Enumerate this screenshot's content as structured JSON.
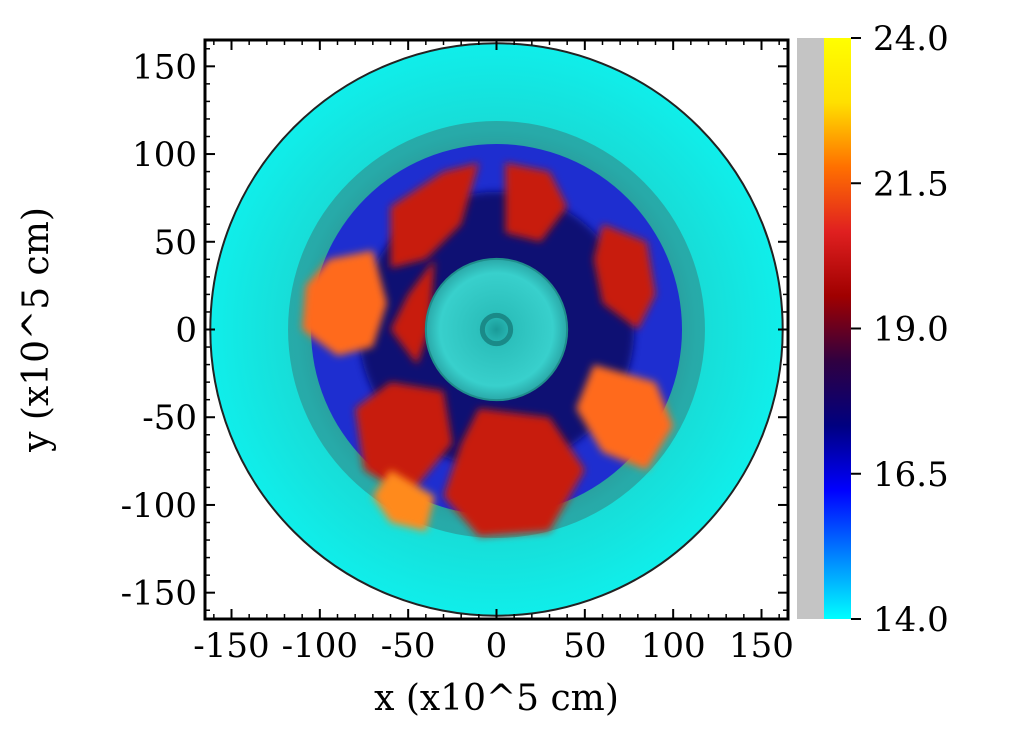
{
  "chart_data": {
    "type": "heatmap",
    "title": "",
    "xlabel": "x (x10^5 cm)",
    "ylabel": "y (x10^5 cm)",
    "xlim": [
      -165,
      165
    ],
    "ylim": [
      -165,
      165
    ],
    "x_ticks": [
      -150,
      -100,
      -50,
      0,
      50,
      100,
      150
    ],
    "x_tick_labels": [
      "-150",
      "-100",
      "-50",
      "0",
      "50",
      "100",
      "150"
    ],
    "y_ticks": [
      -150,
      -100,
      -50,
      0,
      50,
      100,
      150
    ],
    "y_tick_labels": [
      "-150",
      "-100",
      "-50",
      "0",
      "50",
      "100",
      "150"
    ],
    "domain_radius": 162,
    "colorbar": {
      "min": 14.0,
      "max": 24.0,
      "ticks": [
        14.0,
        16.5,
        19.0,
        21.5,
        24.0
      ],
      "tick_labels": [
        "14.0",
        "16.5",
        "19.0",
        "21.5",
        "24.0"
      ],
      "colors": [
        "#00ffff",
        "#0080ff",
        "#0000ff",
        "#000080",
        "#300040",
        "#a00000",
        "#e02020",
        "#ff7000",
        "#ffe000",
        "#ffff00"
      ]
    },
    "regions": [
      {
        "name": "outer shell",
        "r_inner": 115,
        "r_outer": 162,
        "value": 14.2
      },
      {
        "name": "transition ring",
        "r_inner": 100,
        "r_outer": 118,
        "value": 15.5
      },
      {
        "name": "mixing zone",
        "r_inner": 40,
        "r_outer": 105,
        "value": 17.5
      },
      {
        "name": "core",
        "r_inner": 0,
        "r_outer": 40,
        "value": 14.8
      }
    ],
    "colors": {
      "shell": "#1ee8e0",
      "ring": "#2c9a9a",
      "blue": "#1e2ed0",
      "navy": "#0b0b6a",
      "red": "#c81e10",
      "orange": "#ff6a1a",
      "core": "#30c4c0"
    }
  }
}
